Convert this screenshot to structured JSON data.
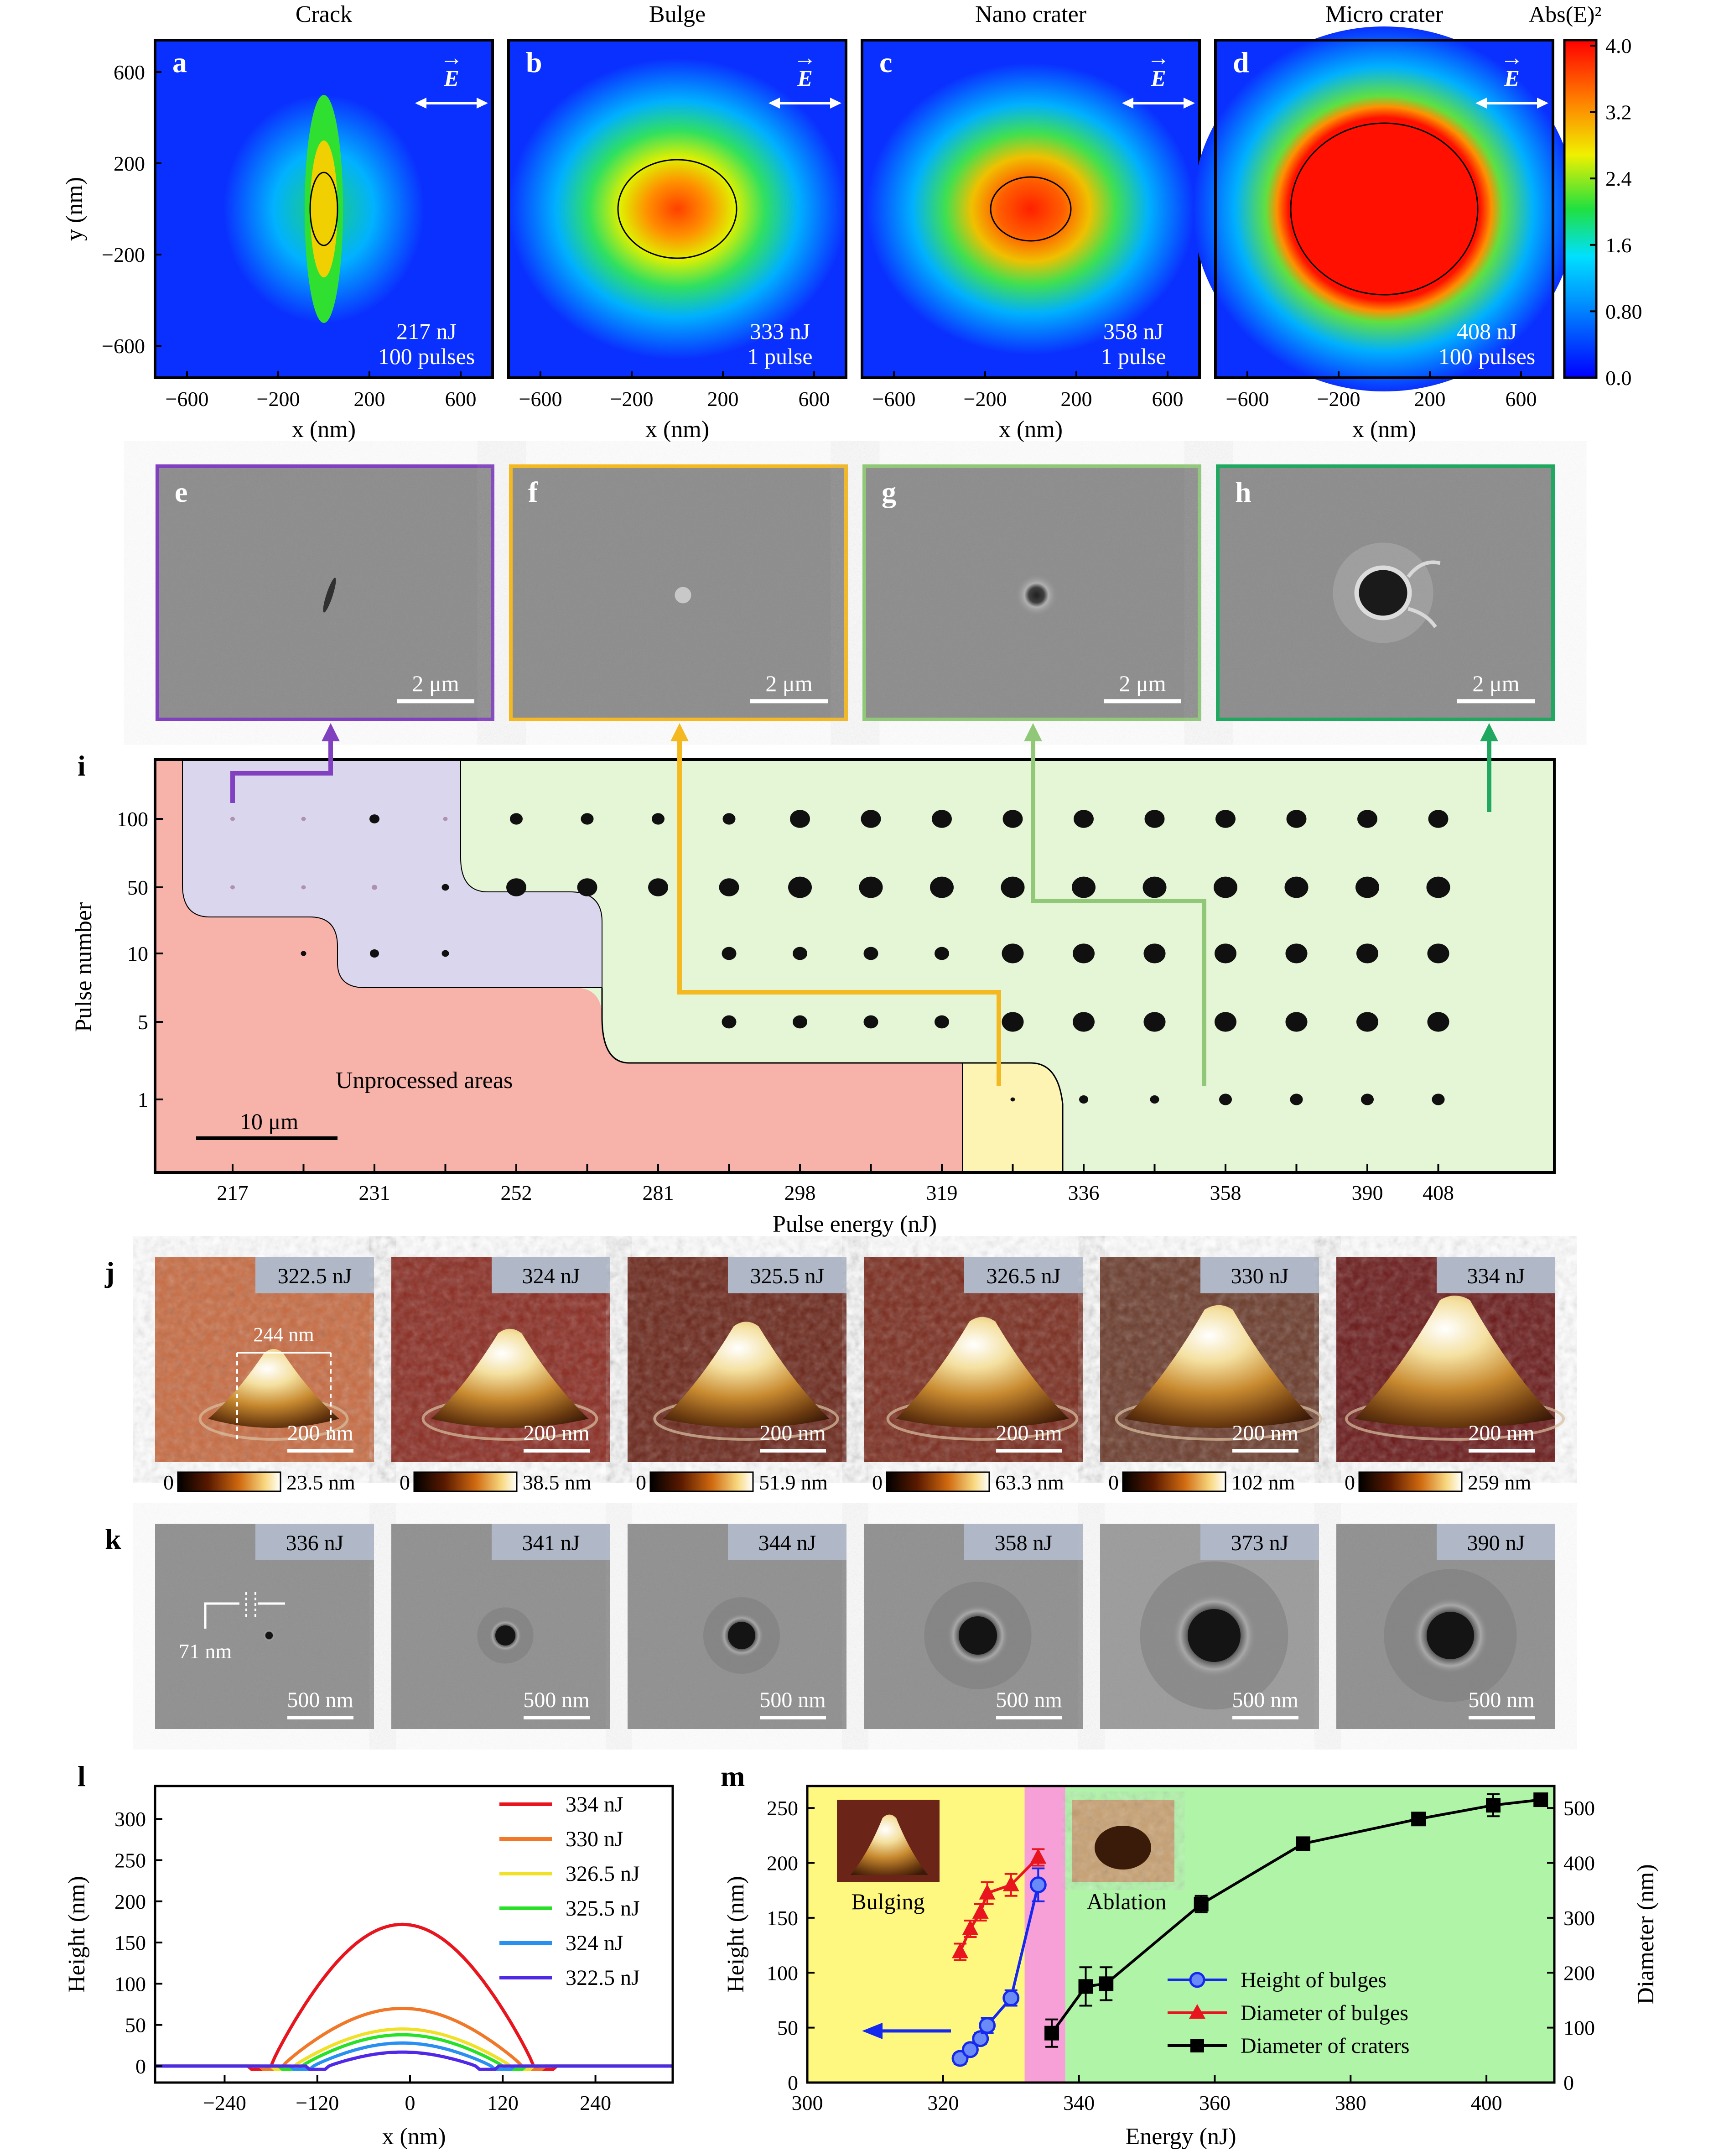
{
  "colors": {
    "bg_blue": "#0a30ff",
    "red": "#ff1a00",
    "unprocessed": "#f7b2aa",
    "bulge_region": "#fdf4b4",
    "ablation_region": "#e4f6d5",
    "crack_region": "#d9d6ee",
    "purple": "#8040c0",
    "yellow": "#f4b820",
    "light_green": "#90c878",
    "green": "#20a860",
    "sem_gray": "#8a8a8a",
    "bulging_bg": "#fff880",
    "transition_bg": "#f7a0d8",
    "ablation_bg": "#b0f4a8",
    "tag_bg": "#b0b8c8"
  },
  "panel_titles": [
    "Crack",
    "Bulge",
    "Nano crater",
    "Micro crater"
  ],
  "panel_letters": [
    "a",
    "b",
    "c",
    "d",
    "e",
    "f",
    "g",
    "h",
    "i",
    "j",
    "k",
    "l",
    "m"
  ],
  "efield": {
    "label": "E",
    "arrow": "→"
  },
  "sim_panels": [
    {
      "energy": "217 nJ",
      "pulses": "100 pulses",
      "shape": "crack"
    },
    {
      "energy": "333 nJ",
      "pulses": "1 pulse",
      "shape": "bulge"
    },
    {
      "energy": "358 nJ",
      "pulses": "1 pulse",
      "shape": "nano"
    },
    {
      "energy": "408 nJ",
      "pulses": "100 pulses",
      "shape": "micro"
    }
  ],
  "sim_axes": {
    "xlabel": "x (nm)",
    "ylabel": "y (nm)",
    "ticks": [
      "−600",
      "−200",
      "200",
      "600"
    ]
  },
  "colorbar": {
    "label": "Abs(E)²",
    "ticks": [
      "4.0",
      "3.2",
      "2.4",
      "1.6",
      "0.80",
      "0.0"
    ]
  },
  "sem_scale": "2 μm",
  "map": {
    "ylabel": "Pulse number",
    "xlabel": "Pulse energy (nJ)",
    "ytick_labels": [
      "100",
      "50",
      "10",
      "5",
      "1"
    ],
    "xtick_labels": [
      "217",
      "231",
      "252",
      "281",
      "298",
      "319",
      "336",
      "358",
      "390",
      "408"
    ],
    "unprocessed_label": "Unprocessed areas",
    "scale_label": "10 μm"
  },
  "afm": [
    {
      "energy": "322.5 nJ",
      "max": "23.5 nm"
    },
    {
      "energy": "324 nJ",
      "max": "38.5 nm"
    },
    {
      "energy": "325.5 nJ",
      "max": "51.9 nm"
    },
    {
      "energy": "326.5 nJ",
      "max": "63.3 nm"
    },
    {
      "energy": "330 nJ",
      "max": "102 nm"
    },
    {
      "energy": "334 nJ",
      "max": "259 nm"
    }
  ],
  "afm_zero": "0",
  "afm_scale": "200 nm",
  "afm_measure": "244 nm",
  "sem_k": [
    {
      "energy": "336 nJ"
    },
    {
      "energy": "341 nJ"
    },
    {
      "energy": "344 nJ"
    },
    {
      "energy": "358 nJ"
    },
    {
      "energy": "373 nJ"
    },
    {
      "energy": "390 nJ"
    }
  ],
  "sem_k_scale": "500 nm",
  "sem_k_measure": "71 nm",
  "chart_data": [
    {
      "type": "line",
      "xlabel": "x (nm)",
      "ylabel": "Height (nm)",
      "xlim": [
        -330,
        340
      ],
      "ylim": [
        -20,
        340
      ],
      "xticks": [
        -240,
        -120,
        0,
        120,
        240
      ],
      "yticks": [
        0,
        50,
        100,
        150,
        200,
        250,
        300
      ],
      "xtick_labels": [
        "−240",
        "−120",
        "0",
        "120",
        "240"
      ],
      "ytick_labels": [
        "0",
        "50",
        "100",
        "150",
        "200",
        "250",
        "300"
      ],
      "legend_position": "top-right",
      "series": [
        {
          "name": "334 nJ",
          "color": "#e8141e",
          "peak": 172,
          "halfwidth": 170
        },
        {
          "name": "330 nJ",
          "color": "#f07828",
          "peak": 70,
          "halfwidth": 155
        },
        {
          "name": "326.5 nJ",
          "color": "#f0e028",
          "peak": 45,
          "halfwidth": 140
        },
        {
          "name": "325.5 nJ",
          "color": "#28e028",
          "peak": 38,
          "halfwidth": 130
        },
        {
          "name": "324 nJ",
          "color": "#2890f0",
          "peak": 28,
          "halfwidth": 115
        },
        {
          "name": "322.5 nJ",
          "color": "#5028e8",
          "peak": 17,
          "halfwidth": 95
        }
      ]
    },
    {
      "type": "scatter",
      "xlabel": "Energy (nJ)",
      "ylabel": "Height (nm)",
      "ylabel_right": "Diameter (nm)",
      "xlim": [
        300,
        410
      ],
      "ylim": [
        0,
        270
      ],
      "ylim_right": [
        0,
        540
      ],
      "xticks": [
        300,
        320,
        340,
        360,
        380,
        400
      ],
      "yticks": [
        0,
        50,
        100,
        150,
        200,
        250
      ],
      "yticks_right": [
        0,
        100,
        200,
        300,
        400,
        500
      ],
      "region_labels": [
        "Bulging",
        "Ablation"
      ],
      "legend_position": "bottom-right",
      "series": [
        {
          "name": "Height of bulges",
          "color": "#1428f0",
          "marker": "circle",
          "axis": "left",
          "x": [
            322.5,
            324,
            325.5,
            326.5,
            330,
            334
          ],
          "y": [
            22,
            30,
            40,
            52,
            77,
            180
          ],
          "err": [
            5,
            4,
            5,
            7,
            7,
            15
          ]
        },
        {
          "name": "Diameter of bulges",
          "color": "#e8141e",
          "marker": "triangle",
          "axis": "right",
          "x": [
            322.5,
            324,
            325.5,
            326.5,
            330,
            334
          ],
          "y": [
            238,
            280,
            310,
            345,
            360,
            410
          ],
          "err": [
            15,
            15,
            15,
            20,
            20,
            15
          ]
        },
        {
          "name": "Diameter of craters",
          "color": "#000000",
          "marker": "square",
          "axis": "right",
          "x": [
            336,
            341,
            344,
            358,
            373,
            390,
            401,
            408
          ],
          "y": [
            90,
            175,
            180,
            325,
            435,
            480,
            505,
            515
          ],
          "err": [
            25,
            35,
            30,
            15,
            10,
            10,
            20,
            10
          ]
        }
      ]
    }
  ]
}
